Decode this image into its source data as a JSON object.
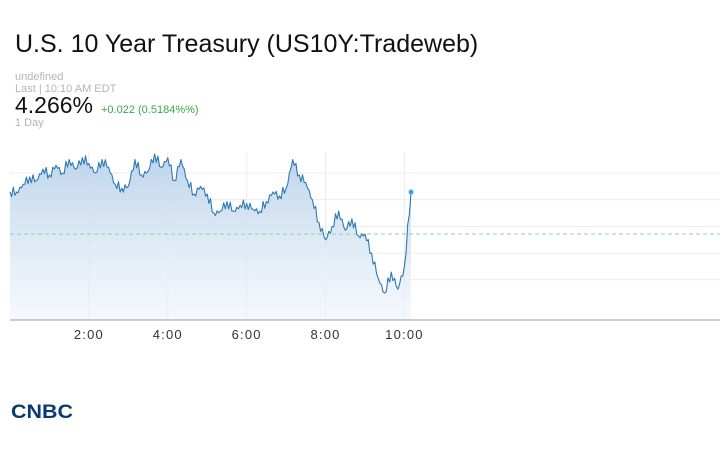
{
  "header": {
    "title": "U.S. 10 Year Treasury (US10Y:Tradeweb)",
    "exchange": "undefined",
    "last_label": "Last | 10:10 AM EDT",
    "price": "4.266%",
    "change": "+0.022 (0.5184%%)",
    "period": "1 Day"
  },
  "watermark": "CNBC",
  "colors": {
    "line": "#2d79b4",
    "area": "#c9dcef",
    "change": "#3aa84a",
    "prev_close": "#8fd59a",
    "marker": "#36a8df",
    "brand": "#0b3a73"
  },
  "chart_data": {
    "type": "area",
    "title": "",
    "xlabel": "",
    "ylabel": "",
    "x_ticks": [
      "2:00",
      "4:00",
      "6:00",
      "8:00",
      "10:00"
    ],
    "x_range": [
      "0:00",
      "18:00"
    ],
    "y_range": [
      4.201,
      4.287
    ],
    "y_grid_values": [
      4.276,
      4.262,
      4.248,
      4.234,
      4.22
    ],
    "y_tick_labels_shown": false,
    "previous_close": 4.244,
    "last_value": 4.266,
    "series": [
      {
        "x": [
          "0:00",
          "0:10",
          "0:20",
          "0:30",
          "0:40",
          "0:50",
          "1:00",
          "1:10",
          "1:20",
          "1:30",
          "1:40",
          "1:50",
          "2:00",
          "2:10",
          "2:20",
          "2:30",
          "2:40",
          "2:50",
          "3:00",
          "3:10",
          "3:20",
          "3:30",
          "3:40",
          "3:50",
          "4:00",
          "4:10",
          "4:20",
          "4:30",
          "4:40",
          "4:50",
          "5:00",
          "5:10",
          "5:20",
          "5:30",
          "5:40",
          "5:50",
          "6:00",
          "6:10",
          "6:20",
          "6:30",
          "6:40",
          "6:50",
          "7:00",
          "7:10",
          "7:20",
          "7:30",
          "7:40",
          "7:50",
          "8:00",
          "8:10",
          "8:20",
          "8:30",
          "8:40",
          "8:50",
          "9:00",
          "9:10",
          "9:20",
          "9:30",
          "9:40",
          "9:50",
          "10:00",
          "10:10"
        ],
        "values": [
          4.266,
          4.266,
          4.27,
          4.274,
          4.272,
          4.278,
          4.275,
          4.28,
          4.276,
          4.283,
          4.278,
          4.284,
          4.281,
          4.276,
          4.283,
          4.279,
          4.27,
          4.268,
          4.269,
          4.283,
          4.275,
          4.277,
          4.286,
          4.279,
          4.284,
          4.272,
          4.283,
          4.272,
          4.265,
          4.269,
          4.265,
          4.255,
          4.256,
          4.261,
          4.256,
          4.259,
          4.26,
          4.257,
          4.256,
          4.261,
          4.266,
          4.264,
          4.268,
          4.283,
          4.275,
          4.271,
          4.262,
          4.25,
          4.241,
          4.248,
          4.256,
          4.246,
          4.252,
          4.243,
          4.244,
          4.234,
          4.221,
          4.213,
          4.224,
          4.215,
          4.227,
          4.266
        ]
      }
    ]
  }
}
